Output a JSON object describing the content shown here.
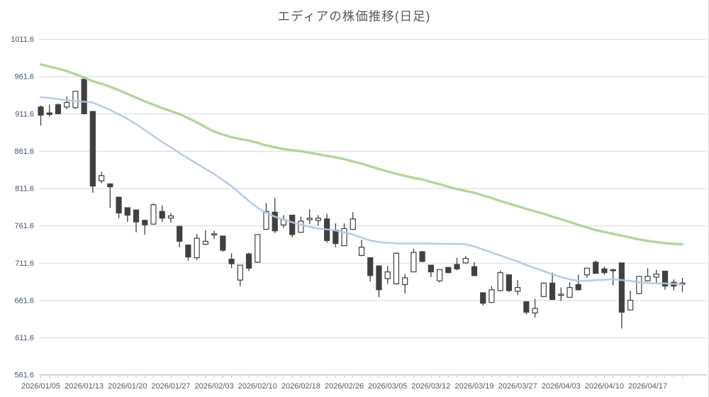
{
  "chart_data": {
    "type": "candlestick",
    "title": "エディアの株価推移(日足)",
    "y_axis": {
      "min": 561.6,
      "max": 1011.6,
      "step": 50,
      "ticks": [
        "1011.6",
        "961.6",
        "911.6",
        "861.6",
        "811.6",
        "761.6",
        "711.6",
        "661.6",
        "611.6",
        "561.6"
      ]
    },
    "x_axis": {
      "labels": [
        "2026/01/05",
        "2026/01/13",
        "2026/01/20",
        "2026/01/27",
        "2026/02/03",
        "2026/02/10",
        "2026/02/18",
        "2026/02/26",
        "2026/03/05",
        "2026/03/12",
        "2026/03/19",
        "2026/03/27",
        "2026/04/03",
        "2026/04/10",
        "2026/04/17"
      ],
      "label_every": 5
    },
    "grid": true,
    "legend": "none",
    "candles_ohlc": [
      [
        921,
        923,
        896,
        910
      ],
      [
        913,
        924,
        908,
        911
      ],
      [
        924,
        926,
        911,
        912
      ],
      [
        921,
        935,
        918,
        927
      ],
      [
        920,
        943,
        918,
        942
      ],
      [
        958,
        960,
        911,
        912
      ],
      [
        915,
        915,
        806,
        815
      ],
      [
        822,
        834,
        819,
        829
      ],
      [
        818,
        818,
        786,
        814
      ],
      [
        800,
        801,
        772,
        779
      ],
      [
        786,
        786,
        767,
        776
      ],
      [
        783,
        783,
        753,
        767
      ],
      [
        769,
        770,
        750,
        763
      ],
      [
        764,
        792,
        763,
        790
      ],
      [
        781,
        789,
        767,
        772
      ],
      [
        772,
        779,
        766,
        775
      ],
      [
        761,
        761,
        733,
        741
      ],
      [
        736,
        736,
        715,
        720
      ],
      [
        719,
        751,
        716,
        745
      ],
      [
        737,
        756,
        736,
        741
      ],
      [
        750,
        755,
        744,
        751
      ],
      [
        748,
        748,
        727,
        729
      ],
      [
        717,
        725,
        705,
        711
      ],
      [
        689,
        709,
        681,
        709
      ],
      [
        724,
        726,
        701,
        705
      ],
      [
        713,
        750,
        712,
        750
      ],
      [
        757,
        792,
        757,
        781
      ],
      [
        780,
        799,
        752,
        755
      ],
      [
        763,
        776,
        759,
        770
      ],
      [
        776,
        776,
        746,
        750
      ],
      [
        753,
        774,
        753,
        768
      ],
      [
        770,
        784,
        764,
        772
      ],
      [
        769,
        776,
        762,
        772
      ],
      [
        771,
        778,
        739,
        742
      ],
      [
        756,
        765,
        733,
        738
      ],
      [
        735,
        765,
        735,
        758
      ],
      [
        757,
        780,
        756,
        771
      ],
      [
        722,
        743,
        721,
        733
      ],
      [
        719,
        719,
        687,
        695
      ],
      [
        708,
        708,
        666,
        676
      ],
      [
        691,
        708,
        684,
        700
      ],
      [
        684,
        726,
        683,
        725
      ],
      [
        683,
        697,
        671,
        692
      ],
      [
        700,
        731,
        700,
        726
      ],
      [
        727,
        728,
        713,
        714
      ],
      [
        709,
        709,
        693,
        700
      ],
      [
        688,
        703,
        686,
        703
      ],
      [
        706,
        706,
        698,
        699
      ],
      [
        710,
        719,
        702,
        704
      ],
      [
        712,
        721,
        711,
        718
      ],
      [
        707,
        713,
        695,
        695
      ],
      [
        672,
        672,
        655,
        658
      ],
      [
        659,
        681,
        659,
        676
      ],
      [
        675,
        702,
        674,
        699
      ],
      [
        696,
        697,
        673,
        675
      ],
      [
        674,
        689,
        669,
        679
      ],
      [
        660,
        660,
        643,
        646
      ],
      [
        645,
        664,
        639,
        651
      ],
      [
        667,
        686,
        666,
        685
      ],
      [
        685,
        699,
        663,
        663
      ],
      [
        669,
        679,
        661,
        670
      ],
      [
        666,
        686,
        666,
        679
      ],
      [
        683,
        696,
        675,
        676
      ],
      [
        696,
        705,
        692,
        705
      ],
      [
        713,
        715,
        698,
        698
      ],
      [
        704,
        707,
        696,
        699
      ],
      [
        703,
        704,
        682,
        702
      ],
      [
        712,
        712,
        624,
        646
      ],
      [
        649,
        675,
        649,
        662
      ],
      [
        671,
        694,
        670,
        694
      ],
      [
        688,
        705,
        687,
        694
      ],
      [
        693,
        703,
        684,
        697
      ],
      [
        701,
        701,
        676,
        681
      ],
      [
        686,
        690,
        675,
        681
      ],
      [
        684,
        692,
        673,
        685
      ]
    ],
    "series": [
      {
        "name": "moving-average-long",
        "color": "#a9d18e",
        "values": [
          978,
          975,
          972.5,
          969,
          965,
          960.5,
          955.5,
          952,
          948,
          943.5,
          938.5,
          933.5,
          928.5,
          924,
          919.5,
          915.5,
          911.5,
          906,
          900.5,
          894,
          888,
          884,
          880.5,
          878,
          876,
          873,
          869.5,
          867,
          864.5,
          863,
          861.8,
          859.5,
          857.5,
          855.5,
          853.5,
          851,
          848,
          845,
          841.5,
          838,
          834.5,
          831.5,
          828.5,
          826,
          824,
          820.5,
          817.5,
          814,
          811,
          808.5,
          806,
          802.5,
          799,
          795,
          791.5,
          788,
          784.5,
          781,
          778,
          774,
          770.5,
          767,
          763,
          759.5,
          756,
          753.5,
          751,
          748.5,
          746,
          743.5,
          741.5,
          740,
          738.5,
          737.5,
          737
        ]
      },
      {
        "name": "moving-average-short",
        "color": "#b4c7e7",
        "values": [
          934,
          933,
          931.5,
          930,
          929,
          928,
          927,
          922,
          917,
          911,
          905,
          898,
          890,
          882,
          874,
          867,
          859,
          852,
          845,
          838,
          831,
          823,
          815,
          805,
          795,
          786,
          779,
          774,
          770,
          766.5,
          763,
          760.5,
          758,
          757,
          755.5,
          753,
          750,
          746,
          742,
          740,
          739,
          738.3,
          738,
          738,
          738,
          737.8,
          737.6,
          737.5,
          737.4,
          737,
          734,
          730,
          726,
          722,
          718,
          714,
          709,
          705,
          701,
          697,
          693,
          690,
          688,
          688,
          689,
          689.5,
          690,
          689,
          688,
          686,
          685,
          684.5,
          684.5,
          684,
          683
        ]
      }
    ],
    "colors": {
      "up_fill": "#ffffff",
      "down_fill": "#404040",
      "outline": "#404040",
      "gridline": "#d9d9d9",
      "axis_line": "#c9c9c9",
      "x_label_text": "#595959",
      "y_label_text": "#44546a",
      "title_text": "#595959"
    }
  }
}
